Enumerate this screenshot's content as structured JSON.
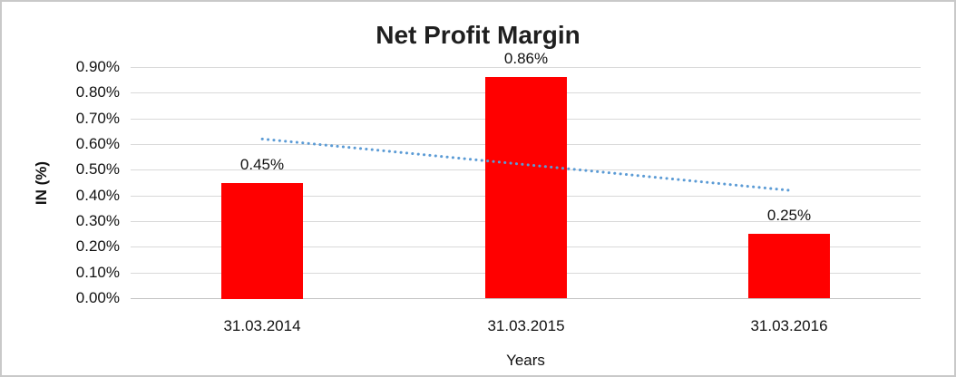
{
  "chart_data": {
    "type": "bar",
    "title": "Net Profit Margin",
    "xlabel": "Years",
    "ylabel": "IN (%)",
    "categories": [
      "31.03.2014",
      "31.03.2015",
      "31.03.2016"
    ],
    "values": [
      0.45,
      0.86,
      0.25
    ],
    "data_labels": [
      "0.45%",
      "0.86%",
      "0.25%"
    ],
    "ytick_labels": [
      "0.00%",
      "0.10%",
      "0.20%",
      "0.30%",
      "0.40%",
      "0.50%",
      "0.60%",
      "0.70%",
      "0.80%",
      "0.90%"
    ],
    "ylim": [
      0,
      0.9
    ],
    "grid": true,
    "legend": "none",
    "bar_color": "#FF0000",
    "gridline_color": "#d9d9d9",
    "trendline": {
      "type": "linear",
      "style": "dotted",
      "color": "#5B9BD5",
      "start_value": 0.62,
      "end_value": 0.42
    }
  }
}
